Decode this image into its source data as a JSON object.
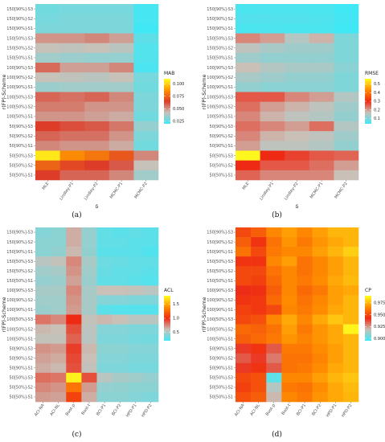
{
  "chart_data": [
    {
      "type": "heatmap",
      "panel_label": "(a)",
      "xlabel": "δ",
      "ylabel": "r(FP)-Scheme",
      "x": [
        "MLE",
        "Lindley-P1",
        "Lindley-P2",
        "MCMC-P1",
        "MCMC-P2"
      ],
      "y": [
        "150[90%]-S3",
        "150[90%]-S2",
        "150[90%]-S1",
        "150[50%]-S3",
        "150[50%]-S2",
        "150[50%]-S1",
        "100[90%]-S3",
        "100[90%]-S2",
        "100[90%]-S1",
        "100[50%]-S3",
        "100[50%]-S2",
        "100[50%]-S1",
        "50[90%]-S3",
        "50[90%]-S2",
        "50[90%]-S1",
        "50[50%]-S3",
        "50[50%]-S2",
        "50[50%]-S1"
      ],
      "legend": {
        "title": "MAB",
        "ticks": [
          0.025,
          0.05,
          0.075,
          0.1
        ],
        "tick_labels": [
          "0.025",
          "0.050",
          "0.075",
          "0.100"
        ],
        "range": [
          0.02,
          0.11
        ],
        "stops": [
          "#40e8f5",
          "#c9c0b8",
          "#dd3c28",
          "#ff9500",
          "#ffff20"
        ]
      },
      "values": [
        [
          0.028,
          0.029,
          0.029,
          0.029,
          0.021
        ],
        [
          0.029,
          0.03,
          0.03,
          0.03,
          0.021
        ],
        [
          0.03,
          0.03,
          0.03,
          0.03,
          0.019
        ],
        [
          0.05,
          0.05,
          0.052,
          0.048,
          0.025
        ],
        [
          0.042,
          0.041,
          0.042,
          0.04,
          0.023
        ],
        [
          0.036,
          0.035,
          0.034,
          0.034,
          0.023
        ],
        [
          0.057,
          0.048,
          0.048,
          0.052,
          0.022
        ],
        [
          0.042,
          0.041,
          0.04,
          0.042,
          0.029
        ],
        [
          0.035,
          0.036,
          0.036,
          0.036,
          0.028
        ],
        [
          0.058,
          0.056,
          0.058,
          0.052,
          0.03
        ],
        [
          0.054,
          0.054,
          0.05,
          0.05,
          0.03
        ],
        [
          0.05,
          0.05,
          0.048,
          0.046,
          0.028
        ],
        [
          0.065,
          0.062,
          0.06,
          0.055,
          0.034
        ],
        [
          0.058,
          0.056,
          0.056,
          0.05,
          0.03
        ],
        [
          0.052,
          0.05,
          0.05,
          0.046,
          0.028
        ],
        [
          0.105,
          0.085,
          0.08,
          0.072,
          0.052
        ],
        [
          0.075,
          0.068,
          0.065,
          0.06,
          0.042
        ],
        [
          0.065,
          0.058,
          0.058,
          0.052,
          0.036
        ]
      ]
    },
    {
      "type": "heatmap",
      "panel_label": "(b)",
      "xlabel": "δ",
      "ylabel": "r(FP)-Scheme",
      "x": [
        "MLE",
        "Lindley-P1",
        "Lindley-P2",
        "MCMC-P1",
        "MCMC-P2"
      ],
      "y": [
        "150[90%]-S3",
        "150[90%]-S2",
        "150[90%]-S1",
        "150[50%]-S3",
        "150[50%]-S2",
        "150[50%]-S1",
        "100[90%]-S3",
        "100[90%]-S2",
        "100[90%]-S1",
        "100[50%]-S3",
        "100[50%]-S2",
        "100[50%]-S1",
        "50[90%]-S3",
        "50[90%]-S2",
        "50[90%]-S1",
        "50[50%]-S3",
        "50[50%]-S2",
        "50[50%]-S1"
      ],
      "legend": {
        "title": "RMSE",
        "ticks": [
          0.1,
          0.2,
          0.3,
          0.4,
          0.5
        ],
        "tick_labels": [
          "0.1",
          "0.2",
          "0.3",
          "0.4",
          "0.5"
        ],
        "range": [
          0.04,
          0.56
        ],
        "stops": [
          "#40e8f5",
          "#c9c0b8",
          "#ee2a14",
          "#ff8c00",
          "#ffff20"
        ]
      },
      "values": [
        [
          0.05,
          0.052,
          0.052,
          0.05,
          0.04
        ],
        [
          0.058,
          0.058,
          0.058,
          0.056,
          0.045
        ],
        [
          0.05,
          0.052,
          0.05,
          0.05,
          0.04
        ],
        [
          0.22,
          0.2,
          0.15,
          0.18,
          0.1
        ],
        [
          0.16,
          0.14,
          0.13,
          0.13,
          0.1
        ],
        [
          0.13,
          0.12,
          0.12,
          0.12,
          0.1
        ],
        [
          0.17,
          0.15,
          0.14,
          0.14,
          0.11
        ],
        [
          0.14,
          0.13,
          0.12,
          0.12,
          0.1
        ],
        [
          0.12,
          0.11,
          0.11,
          0.11,
          0.1
        ],
        [
          0.26,
          0.26,
          0.22,
          0.2,
          0.15
        ],
        [
          0.24,
          0.2,
          0.18,
          0.16,
          0.13
        ],
        [
          0.22,
          0.18,
          0.16,
          0.15,
          0.12
        ],
        [
          0.24,
          0.22,
          0.2,
          0.24,
          0.15
        ],
        [
          0.22,
          0.18,
          0.17,
          0.16,
          0.13
        ],
        [
          0.2,
          0.16,
          0.16,
          0.15,
          0.12
        ],
        [
          0.55,
          0.3,
          0.28,
          0.26,
          0.25
        ],
        [
          0.3,
          0.26,
          0.26,
          0.24,
          0.2
        ],
        [
          0.25,
          0.22,
          0.22,
          0.22,
          0.17
        ]
      ]
    },
    {
      "type": "heatmap",
      "panel_label": "(c)",
      "xlabel": "",
      "ylabel": "r(FP)-Scheme",
      "x": [
        "ACI-NA",
        "ACI-NL",
        "Boot-p",
        "Boot-t",
        "BCI-P1",
        "BCI-P2",
        "HPD-P1",
        "HPD-P2"
      ],
      "y": [
        "150[90%]-S3",
        "150[90%]-S2",
        "150[90%]-S1",
        "150[50%]-S3",
        "150[50%]-S2",
        "150[50%]-S1",
        "100[90%]-S3",
        "100[90%]-S2",
        "100[90%]-S1",
        "100[50%]-S3",
        "100[50%]-S2",
        "100[50%]-S1",
        "50[90%]-S3",
        "50[90%]-S2",
        "50[90%]-S1",
        "50[50%]-S3",
        "50[50%]-S2",
        "50[50%]-S1"
      ],
      "legend": {
        "title": "ACL",
        "ticks": [
          0.5,
          1.0,
          1.5
        ],
        "tick_labels": [
          "0.5",
          "1.0",
          "1.5"
        ],
        "range": [
          0.2,
          1.8
        ],
        "stops": [
          "#40e8f5",
          "#c9c0b8",
          "#ee2a14",
          "#ff8c00",
          "#ffff20"
        ]
      },
      "values": [
        [
          0.4,
          0.42,
          0.65,
          0.45,
          0.3,
          0.28,
          0.3,
          0.28
        ],
        [
          0.42,
          0.42,
          0.65,
          0.45,
          0.3,
          0.3,
          0.28,
          0.28
        ],
        [
          0.42,
          0.44,
          0.62,
          0.44,
          0.28,
          0.28,
          0.28,
          0.25
        ],
        [
          0.55,
          0.58,
          0.75,
          0.5,
          0.33,
          0.32,
          0.3,
          0.3
        ],
        [
          0.48,
          0.5,
          0.72,
          0.48,
          0.32,
          0.3,
          0.3,
          0.28
        ],
        [
          0.45,
          0.46,
          0.68,
          0.46,
          0.3,
          0.3,
          0.28,
          0.26
        ],
        [
          0.5,
          0.5,
          0.75,
          0.5,
          0.6,
          0.6,
          0.58,
          0.55
        ],
        [
          0.48,
          0.48,
          0.72,
          0.5,
          0.4,
          0.4,
          0.38,
          0.38
        ],
        [
          0.46,
          0.48,
          0.7,
          0.5,
          0.28,
          0.26,
          0.26,
          0.26
        ],
        [
          0.8,
          0.75,
          1.0,
          0.58,
          0.62,
          0.6,
          0.55,
          0.55
        ],
        [
          0.62,
          0.6,
          0.9,
          0.56,
          0.4,
          0.4,
          0.38,
          0.38
        ],
        [
          0.58,
          0.58,
          0.85,
          0.55,
          0.38,
          0.38,
          0.36,
          0.35
        ],
        [
          0.72,
          0.7,
          0.95,
          0.62,
          0.42,
          0.42,
          0.4,
          0.4
        ],
        [
          0.68,
          0.66,
          0.92,
          0.6,
          0.4,
          0.4,
          0.38,
          0.38
        ],
        [
          0.65,
          0.62,
          0.9,
          0.58,
          0.38,
          0.38,
          0.36,
          0.36
        ],
        [
          0.82,
          0.8,
          1.75,
          0.9,
          0.55,
          0.5,
          0.48,
          0.45
        ],
        [
          0.75,
          0.72,
          1.3,
          0.7,
          0.45,
          0.44,
          0.42,
          0.42
        ],
        [
          0.7,
          0.68,
          1.1,
          0.65,
          0.42,
          0.42,
          0.4,
          0.38
        ]
      ]
    },
    {
      "type": "heatmap",
      "panel_label": "(d)",
      "xlabel": "",
      "ylabel": "r(FP)-Scheme",
      "x": [
        "ACI-NA",
        "ACI-NL",
        "Boot-p",
        "Boot-t",
        "BCI-P1",
        "BCI-P2",
        "HPD-P1",
        "HPD-P2"
      ],
      "y": [
        "150[90%]-S3",
        "150[90%]-S2",
        "150[90%]-S1",
        "150[50%]-S3",
        "150[50%]-S2",
        "150[50%]-S1",
        "100[90%]-S3",
        "100[90%]-S2",
        "100[90%]-S1",
        "100[50%]-S3",
        "100[50%]-S2",
        "100[50%]-S1",
        "50[90%]-S3",
        "50[90%]-S2",
        "50[90%]-S1",
        "50[50%]-S3",
        "50[50%]-S2",
        "50[50%]-S1"
      ],
      "legend": {
        "title": "CP",
        "ticks": [
          0.9,
          0.925,
          0.95,
          0.975
        ],
        "tick_labels": [
          "0.900",
          "0.925",
          "0.950",
          "0.975"
        ],
        "range": [
          0.895,
          0.99
        ],
        "stops": [
          "#40e8f5",
          "#c9c0b8",
          "#ee2a14",
          "#ff8c00",
          "#ffff20"
        ]
      },
      "values": [
        [
          0.95,
          0.955,
          0.965,
          0.97,
          0.965,
          0.97,
          0.975,
          0.975
        ],
        [
          0.955,
          0.945,
          0.96,
          0.968,
          0.962,
          0.968,
          0.972,
          0.975
        ],
        [
          0.96,
          0.95,
          0.962,
          0.965,
          0.965,
          0.97,
          0.975,
          0.98
        ],
        [
          0.945,
          0.945,
          0.965,
          0.97,
          0.96,
          0.965,
          0.97,
          0.975
        ],
        [
          0.95,
          0.95,
          0.96,
          0.965,
          0.96,
          0.965,
          0.97,
          0.975
        ],
        [
          0.95,
          0.948,
          0.958,
          0.965,
          0.962,
          0.966,
          0.972,
          0.976
        ],
        [
          0.942,
          0.944,
          0.955,
          0.965,
          0.958,
          0.962,
          0.97,
          0.972
        ],
        [
          0.945,
          0.946,
          0.958,
          0.966,
          0.96,
          0.965,
          0.97,
          0.975
        ],
        [
          0.948,
          0.946,
          0.95,
          0.965,
          0.962,
          0.966,
          0.972,
          0.975
        ],
        [
          0.95,
          0.952,
          0.965,
          0.972,
          0.965,
          0.972,
          0.978,
          0.975
        ],
        [
          0.958,
          0.956,
          0.96,
          0.97,
          0.962,
          0.968,
          0.972,
          0.988
        ],
        [
          0.955,
          0.958,
          0.962,
          0.968,
          0.964,
          0.968,
          0.972,
          0.975
        ],
        [
          0.94,
          0.945,
          0.935,
          0.962,
          0.962,
          0.966,
          0.97,
          0.975
        ],
        [
          0.935,
          0.94,
          0.93,
          0.96,
          0.96,
          0.964,
          0.97,
          0.975
        ],
        [
          0.94,
          0.945,
          0.935,
          0.96,
          0.962,
          0.966,
          0.972,
          0.975
        ],
        [
          0.95,
          0.952,
          0.9,
          0.965,
          0.965,
          0.97,
          0.975,
          0.978
        ],
        [
          0.948,
          0.952,
          0.915,
          0.962,
          0.96,
          0.966,
          0.972,
          0.976
        ],
        [
          0.952,
          0.955,
          0.92,
          0.965,
          0.962,
          0.968,
          0.972,
          0.975
        ]
      ]
    }
  ]
}
